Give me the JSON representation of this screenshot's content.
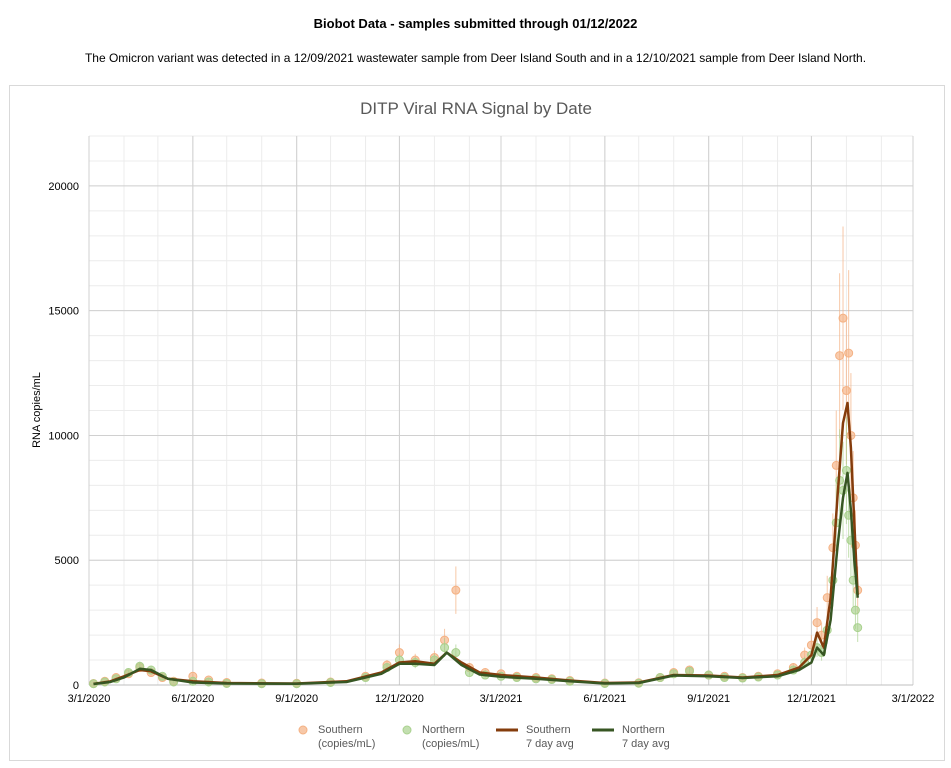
{
  "header": {
    "title": "Biobot Data - samples submitted through 01/12/2022",
    "subtitle": "The Omicron variant was detected in a 12/09/2021 wastewater sample from Deer Island South and in a 12/10/2021 sample from Deer Island North."
  },
  "chart_data": {
    "type": "scatter",
    "title": "DITP Viral RNA Signal by Date",
    "xlabel": "",
    "ylabel": "RNA copies/mL",
    "ylim": [
      0,
      22000
    ],
    "xlim": [
      "2020-03-01",
      "2022-03-01"
    ],
    "y_ticks": [
      "0",
      "5000",
      "10000",
      "15000",
      "20000"
    ],
    "x_ticks": [
      "3/1/2020",
      "6/1/2020",
      "9/1/2020",
      "12/1/2020",
      "3/1/2021",
      "6/1/2021",
      "9/1/2021",
      "12/1/2021",
      "3/1/2022"
    ],
    "grid": true,
    "legend_position": "bottom",
    "series": [
      {
        "name": "Southern (copies/mL)",
        "kind": "points",
        "color": "#f4b183",
        "points": [
          [
            "2020-03-05",
            60
          ],
          [
            "2020-03-15",
            150
          ],
          [
            "2020-03-25",
            300
          ],
          [
            "2020-04-05",
            450
          ],
          [
            "2020-04-15",
            700
          ],
          [
            "2020-04-25",
            500
          ],
          [
            "2020-05-05",
            300
          ],
          [
            "2020-05-15",
            150
          ],
          [
            "2020-06-01",
            350
          ],
          [
            "2020-06-15",
            200
          ],
          [
            "2020-07-01",
            100
          ],
          [
            "2020-08-01",
            80
          ],
          [
            "2020-09-01",
            70
          ],
          [
            "2020-10-01",
            120
          ],
          [
            "2020-11-01",
            350
          ],
          [
            "2020-11-20",
            800
          ],
          [
            "2020-12-01",
            1300
          ],
          [
            "2020-12-15",
            1000
          ],
          [
            "2021-01-01",
            1100
          ],
          [
            "2021-01-10",
            1800
          ],
          [
            "2021-01-20",
            3800
          ],
          [
            "2021-02-01",
            700
          ],
          [
            "2021-02-15",
            500
          ],
          [
            "2021-03-01",
            450
          ],
          [
            "2021-03-15",
            350
          ],
          [
            "2021-04-01",
            300
          ],
          [
            "2021-04-15",
            250
          ],
          [
            "2021-05-01",
            180
          ],
          [
            "2021-06-01",
            80
          ],
          [
            "2021-07-01",
            90
          ],
          [
            "2021-07-20",
            300
          ],
          [
            "2021-08-01",
            500
          ],
          [
            "2021-08-15",
            600
          ],
          [
            "2021-09-01",
            400
          ],
          [
            "2021-09-15",
            350
          ],
          [
            "2021-10-01",
            300
          ],
          [
            "2021-10-15",
            350
          ],
          [
            "2021-11-01",
            450
          ],
          [
            "2021-11-15",
            700
          ],
          [
            "2021-11-25",
            1200
          ],
          [
            "2021-12-01",
            1600
          ],
          [
            "2021-12-06",
            2500
          ],
          [
            "2021-12-10",
            2000
          ],
          [
            "2021-12-15",
            3500
          ],
          [
            "2021-12-20",
            5500
          ],
          [
            "2021-12-23",
            8800
          ],
          [
            "2021-12-26",
            13200
          ],
          [
            "2021-12-29",
            14700
          ],
          [
            "2022-01-01",
            11800
          ],
          [
            "2022-01-03",
            13300
          ],
          [
            "2022-01-05",
            10000
          ],
          [
            "2022-01-07",
            7500
          ],
          [
            "2022-01-09",
            5600
          ],
          [
            "2022-01-11",
            3800
          ]
        ]
      },
      {
        "name": "Northern (copies/mL)",
        "kind": "points",
        "color": "#a9d18e",
        "points": [
          [
            "2020-03-05",
            50
          ],
          [
            "2020-03-15",
            120
          ],
          [
            "2020-03-25",
            250
          ],
          [
            "2020-04-05",
            500
          ],
          [
            "2020-04-15",
            750
          ],
          [
            "2020-04-25",
            600
          ],
          [
            "2020-05-05",
            350
          ],
          [
            "2020-05-15",
            120
          ],
          [
            "2020-06-01",
            150
          ],
          [
            "2020-06-15",
            120
          ],
          [
            "2020-07-01",
            60
          ],
          [
            "2020-08-01",
            50
          ],
          [
            "2020-09-01",
            50
          ],
          [
            "2020-10-01",
            100
          ],
          [
            "2020-11-01",
            300
          ],
          [
            "2020-11-20",
            700
          ],
          [
            "2020-12-01",
            1000
          ],
          [
            "2020-12-15",
            900
          ],
          [
            "2021-01-01",
            1000
          ],
          [
            "2021-01-10",
            1500
          ],
          [
            "2021-01-20",
            1300
          ],
          [
            "2021-02-01",
            500
          ],
          [
            "2021-02-15",
            400
          ],
          [
            "2021-03-01",
            350
          ],
          [
            "2021-03-15",
            300
          ],
          [
            "2021-04-01",
            250
          ],
          [
            "2021-04-15",
            220
          ],
          [
            "2021-05-01",
            150
          ],
          [
            "2021-06-01",
            60
          ],
          [
            "2021-07-01",
            70
          ],
          [
            "2021-07-20",
            300
          ],
          [
            "2021-08-01",
            450
          ],
          [
            "2021-08-15",
            550
          ],
          [
            "2021-09-01",
            400
          ],
          [
            "2021-09-15",
            300
          ],
          [
            "2021-10-01",
            280
          ],
          [
            "2021-10-15",
            320
          ],
          [
            "2021-11-01",
            400
          ],
          [
            "2021-11-15",
            600
          ],
          [
            "2021-11-25",
            900
          ],
          [
            "2021-12-01",
            1200
          ],
          [
            "2021-12-06",
            1500
          ],
          [
            "2021-12-10",
            1300
          ],
          [
            "2021-12-15",
            2200
          ],
          [
            "2021-12-20",
            4200
          ],
          [
            "2021-12-23",
            6500
          ],
          [
            "2021-12-26",
            8200
          ],
          [
            "2021-12-29",
            7800
          ],
          [
            "2022-01-01",
            8600
          ],
          [
            "2022-01-03",
            6800
          ],
          [
            "2022-01-05",
            5800
          ],
          [
            "2022-01-07",
            4200
          ],
          [
            "2022-01-09",
            3000
          ],
          [
            "2022-01-11",
            2300
          ]
        ]
      },
      {
        "name": "Southern 7 day avg",
        "kind": "line",
        "color": "#843c0c",
        "points": [
          [
            "2020-03-05",
            50
          ],
          [
            "2020-03-20",
            150
          ],
          [
            "2020-04-01",
            350
          ],
          [
            "2020-04-15",
            600
          ],
          [
            "2020-04-25",
            550
          ],
          [
            "2020-05-10",
            250
          ],
          [
            "2020-06-01",
            150
          ],
          [
            "2020-07-01",
            80
          ],
          [
            "2020-09-01",
            60
          ],
          [
            "2020-10-15",
            150
          ],
          [
            "2020-11-15",
            500
          ],
          [
            "2020-12-01",
            900
          ],
          [
            "2020-12-15",
            950
          ],
          [
            "2021-01-01",
            850
          ],
          [
            "2021-01-12",
            1300
          ],
          [
            "2021-01-25",
            900
          ],
          [
            "2021-02-10",
            500
          ],
          [
            "2021-03-01",
            400
          ],
          [
            "2021-04-01",
            300
          ],
          [
            "2021-05-01",
            180
          ],
          [
            "2021-06-01",
            80
          ],
          [
            "2021-07-01",
            100
          ],
          [
            "2021-08-01",
            400
          ],
          [
            "2021-09-01",
            380
          ],
          [
            "2021-10-01",
            300
          ],
          [
            "2021-11-01",
            400
          ],
          [
            "2021-11-20",
            700
          ],
          [
            "2021-12-01",
            1200
          ],
          [
            "2021-12-06",
            2100
          ],
          [
            "2021-12-12",
            1500
          ],
          [
            "2021-12-18",
            3500
          ],
          [
            "2021-12-24",
            7500
          ],
          [
            "2021-12-29",
            10500
          ],
          [
            "2022-01-02",
            11300
          ],
          [
            "2022-01-05",
            9500
          ],
          [
            "2022-01-08",
            6500
          ],
          [
            "2022-01-11",
            3600
          ]
        ]
      },
      {
        "name": "Northern 7 day avg",
        "kind": "line",
        "color": "#375623",
        "points": [
          [
            "2020-03-05",
            40
          ],
          [
            "2020-03-20",
            120
          ],
          [
            "2020-04-01",
            300
          ],
          [
            "2020-04-15",
            650
          ],
          [
            "2020-04-25",
            600
          ],
          [
            "2020-05-10",
            250
          ],
          [
            "2020-06-01",
            100
          ],
          [
            "2020-07-01",
            60
          ],
          [
            "2020-09-01",
            50
          ],
          [
            "2020-10-15",
            120
          ],
          [
            "2020-11-15",
            450
          ],
          [
            "2020-12-01",
            850
          ],
          [
            "2020-12-15",
            850
          ],
          [
            "2021-01-01",
            800
          ],
          [
            "2021-01-12",
            1300
          ],
          [
            "2021-01-25",
            800
          ],
          [
            "2021-02-10",
            420
          ],
          [
            "2021-03-01",
            330
          ],
          [
            "2021-04-01",
            250
          ],
          [
            "2021-05-01",
            150
          ],
          [
            "2021-06-01",
            60
          ],
          [
            "2021-07-01",
            80
          ],
          [
            "2021-08-01",
            380
          ],
          [
            "2021-09-01",
            350
          ],
          [
            "2021-10-01",
            280
          ],
          [
            "2021-11-01",
            350
          ],
          [
            "2021-11-20",
            600
          ],
          [
            "2021-12-01",
            900
          ],
          [
            "2021-12-06",
            1500
          ],
          [
            "2021-12-12",
            1200
          ],
          [
            "2021-12-18",
            2600
          ],
          [
            "2021-12-24",
            5500
          ],
          [
            "2021-12-29",
            7500
          ],
          [
            "2022-01-02",
            8500
          ],
          [
            "2022-01-05",
            7000
          ],
          [
            "2022-01-08",
            5000
          ],
          [
            "2022-01-11",
            3500
          ]
        ]
      }
    ]
  },
  "legend": {
    "items": [
      {
        "line1": "Southern",
        "line2": "(copies/mL)"
      },
      {
        "line1": "Northern",
        "line2": "(copies/mL)"
      },
      {
        "line1": "Southern",
        "line2": "7 day avg"
      },
      {
        "line1": "Northern",
        "line2": "7 day avg"
      }
    ]
  }
}
